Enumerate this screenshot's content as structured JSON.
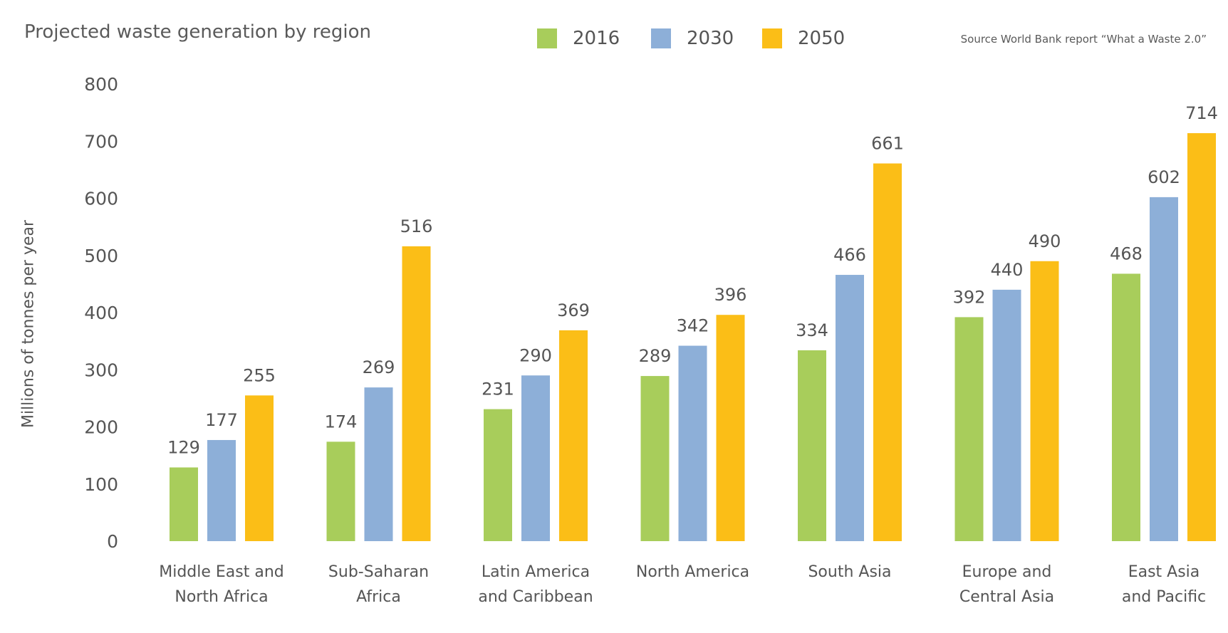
{
  "chart_data": {
    "type": "bar",
    "title": "Projected waste generation by region",
    "source": "Source World Bank report “What a Waste 2.0”",
    "ylabel": "Millions of tonnes per year",
    "xlabel": "",
    "ylim": [
      0,
      800
    ],
    "yticks": [
      "800",
      "700",
      "600",
      "500",
      "400",
      "300",
      "200",
      "100",
      "0"
    ],
    "grid": false,
    "legend_position": "top-center",
    "categories": [
      [
        "Middle East and",
        "North Africa"
      ],
      [
        "Sub-Saharan",
        "Africa"
      ],
      [
        "Latin America",
        "and Caribbean"
      ],
      [
        "North America"
      ],
      [
        "South Asia"
      ],
      [
        "Europe and",
        "Central Asia"
      ],
      [
        "East Asia",
        "and Pacific"
      ]
    ],
    "series": [
      {
        "name": "2016",
        "color": "#a8cd5b",
        "values": [
          129,
          174,
          231,
          289,
          334,
          392,
          468
        ]
      },
      {
        "name": "2030",
        "color": "#8dafd8",
        "values": [
          177,
          269,
          290,
          342,
          466,
          440,
          602
        ]
      },
      {
        "name": "2050",
        "color": "#fbbe17",
        "values": [
          255,
          516,
          369,
          396,
          661,
          490,
          714
        ]
      }
    ]
  }
}
